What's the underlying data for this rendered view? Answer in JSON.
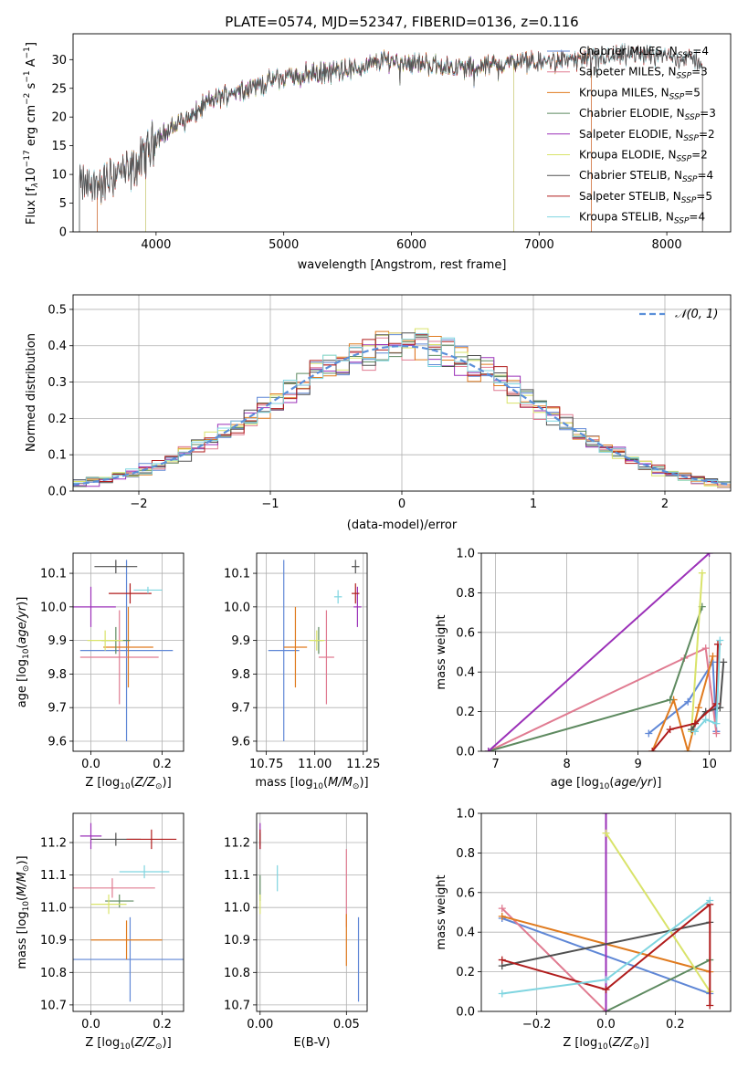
{
  "figure": {
    "title": "PLATE=0574, MJD=52347, FIBERID=0136, z=0.116"
  },
  "colors": {
    "Chabrier MILES": "#5f87d6",
    "Salpeter MILES": "#e07b91",
    "Kroupa MILES": "#e07b1f",
    "Chabrier ELODIE": "#5e8a60",
    "Salpeter ELODIE": "#9b30b8",
    "Kroupa ELODIE": "#d9e36a",
    "Chabrier STELIB": "#505050",
    "Salpeter STELIB": "#b01c1c",
    "Kroupa STELIB": "#7fd5e0"
  },
  "chart_data": [
    {
      "id": "spectrum",
      "type": "line",
      "xlabel": "wavelength [Angstrom, rest frame]",
      "ylabel": "Flux [f_λ10^-17 erg cm^-2 s^-1 A^-1]",
      "xlim": [
        3350,
        8500
      ],
      "ylim": [
        0,
        34.5
      ],
      "xticks": [
        4000,
        5000,
        6000,
        7000,
        8000
      ],
      "yticks": [
        0,
        5,
        10,
        15,
        20,
        25,
        30
      ],
      "grid": false,
      "legend_position": "right",
      "legend": [
        {
          "name": "Chabrier MILES",
          "label": "Chabrier MILES, N",
          "sub": "SSP",
          "eq": "=4"
        },
        {
          "name": "Salpeter MILES",
          "label": "Salpeter MILES, N",
          "sub": "SSP",
          "eq": "=3"
        },
        {
          "name": "Kroupa MILES",
          "label": "Kroupa MILES, N",
          "sub": "SSP",
          "eq": "=5"
        },
        {
          "name": "Chabrier ELODIE",
          "label": "Chabrier ELODIE, N",
          "sub": "SSP",
          "eq": "=3"
        },
        {
          "name": "Salpeter ELODIE",
          "label": "Salpeter ELODIE, N",
          "sub": "SSP",
          "eq": "=2"
        },
        {
          "name": "Kroupa ELODIE",
          "label": "Kroupa ELODIE, N",
          "sub": "SSP",
          "eq": "=2"
        },
        {
          "name": "Chabrier STELIB",
          "label": "Chabrier STELIB, N",
          "sub": "SSP",
          "eq": "=4"
        },
        {
          "name": "Salpeter STELIB",
          "label": "Salpeter STELIB, N",
          "sub": "SSP",
          "eq": "=5"
        },
        {
          "name": "Kroupa STELIB",
          "label": "Kroupa STELIB, N",
          "sub": "SSP",
          "eq": "=4"
        }
      ],
      "continuum_x": [
        3400,
        3500,
        3600,
        3700,
        3800,
        3900,
        4000,
        4100,
        4200,
        4300,
        4400,
        4600,
        4800,
        5000,
        5200,
        5400,
        5600,
        5800,
        6000,
        6200,
        6400,
        6600,
        6800,
        7000,
        7200,
        7400,
        7600,
        7800,
        8000,
        8200,
        8300
      ],
      "continuum_y": [
        8.2,
        8.0,
        8.5,
        10.5,
        10.2,
        13.0,
        16.5,
        17.5,
        19.5,
        20.5,
        22.5,
        24.5,
        25.5,
        27.0,
        27.5,
        28.0,
        28.5,
        30.0,
        29.5,
        29.0,
        28.5,
        29.0,
        29.5,
        29.5,
        30.0,
        30.0,
        30.5,
        31.0,
        30.5,
        30.0,
        29.5
      ],
      "coverage": [
        {
          "name": "Chabrier MILES",
          "min": 3540,
          "max": 7410
        },
        {
          "name": "Salpeter MILES",
          "min": 3540,
          "max": 7410
        },
        {
          "name": "Kroupa MILES",
          "min": 3540,
          "max": 7410
        },
        {
          "name": "Chabrier ELODIE",
          "min": 3920,
          "max": 6800
        },
        {
          "name": "Salpeter ELODIE",
          "min": 3920,
          "max": 6800
        },
        {
          "name": "Kroupa ELODIE",
          "min": 3920,
          "max": 6800
        },
        {
          "name": "Chabrier STELIB",
          "min": 3400,
          "max": 8280
        },
        {
          "name": "Salpeter STELIB",
          "min": 3400,
          "max": 8280
        },
        {
          "name": "Kroupa STELIB",
          "min": 3400,
          "max": 8280
        }
      ]
    },
    {
      "id": "residuals",
      "type": "histogram",
      "xlabel": "(data-model)/error",
      "ylabel": "Normed distribution",
      "xlim": [
        -2.5,
        2.5
      ],
      "ylim": [
        0,
        0.54
      ],
      "xticks": [
        -2,
        -1,
        0,
        1,
        2
      ],
      "yticks": [
        0,
        0.1,
        0.2,
        0.3,
        0.4,
        0.5
      ],
      "grid": true,
      "bin_width": 0.1,
      "legend": "𝒩(0, 1)",
      "legend_position": "top-right"
    },
    {
      "id": "age-vs-Z",
      "type": "errorbar",
      "xlabel": "Z [log10(Z/Z⊙)]",
      "ylabel": "age [log10(age/yr)]",
      "xlim": [
        -0.05,
        0.26
      ],
      "ylim": [
        9.57,
        10.16
      ],
      "xticks": [
        0.0,
        0.2
      ],
      "yticks": [
        9.6,
        9.7,
        9.8,
        9.9,
        10.0,
        10.1
      ],
      "grid": true,
      "points": [
        {
          "name": "Chabrier MILES",
          "x": 0.1,
          "xerr": 0.13,
          "y": 9.87,
          "yerr": 0.27
        },
        {
          "name": "Salpeter MILES",
          "x": 0.08,
          "xerr": 0.11,
          "y": 9.85,
          "yerr": 0.14
        },
        {
          "name": "Kroupa MILES",
          "x": 0.105,
          "xerr": 0.07,
          "y": 9.88,
          "yerr": 0.12
        },
        {
          "name": "Chabrier ELODIE",
          "x": 0.07,
          "xerr": 0.04,
          "y": 9.9,
          "yerr": 0.04
        },
        {
          "name": "Salpeter ELODIE",
          "x": 0.0,
          "xerr": 0.07,
          "y": 10.0,
          "yerr": 0.06
        },
        {
          "name": "Kroupa ELODIE",
          "x": 0.04,
          "xerr": 0.05,
          "y": 9.9,
          "yerr": 0.03
        },
        {
          "name": "Chabrier STELIB",
          "x": 0.07,
          "xerr": 0.06,
          "y": 10.12,
          "yerr": 0.02
        },
        {
          "name": "Salpeter STELIB",
          "x": 0.11,
          "xerr": 0.06,
          "y": 10.04,
          "yerr": 0.03
        },
        {
          "name": "Kroupa STELIB",
          "x": 0.16,
          "xerr": 0.04,
          "y": 10.05,
          "yerr": 0.01
        }
      ]
    },
    {
      "id": "age-vs-mass",
      "type": "errorbar",
      "xlabel": "mass [log10(M/M⊙)]",
      "ylabel": "",
      "xlim": [
        10.7,
        11.27
      ],
      "ylim": [
        9.57,
        10.16
      ],
      "xticks": [
        10.75,
        11.0,
        11.25
      ],
      "yticks": [
        9.6,
        9.7,
        9.8,
        9.9,
        10.0,
        10.1
      ],
      "grid": true,
      "points": [
        {
          "name": "Chabrier MILES",
          "x": 10.84,
          "xerr": 0.08,
          "y": 9.87,
          "yerr": 0.27
        },
        {
          "name": "Salpeter MILES",
          "x": 11.06,
          "xerr": 0.04,
          "y": 9.85,
          "yerr": 0.14
        },
        {
          "name": "Kroupa MILES",
          "x": 10.9,
          "xerr": 0.06,
          "y": 9.88,
          "yerr": 0.12
        },
        {
          "name": "Chabrier ELODIE",
          "x": 11.02,
          "xerr": 0.02,
          "y": 9.9,
          "yerr": 0.04
        },
        {
          "name": "Salpeter ELODIE",
          "x": 11.22,
          "xerr": 0.02,
          "y": 10.0,
          "yerr": 0.06
        },
        {
          "name": "Kroupa ELODIE",
          "x": 11.01,
          "xerr": 0.04,
          "y": 9.9,
          "yerr": 0.03
        },
        {
          "name": "Chabrier STELIB",
          "x": 11.21,
          "xerr": 0.02,
          "y": 10.12,
          "yerr": 0.02
        },
        {
          "name": "Salpeter STELIB",
          "x": 11.21,
          "xerr": 0.02,
          "y": 10.04,
          "yerr": 0.03
        },
        {
          "name": "Kroupa STELIB",
          "x": 11.12,
          "xerr": 0.02,
          "y": 10.03,
          "yerr": 0.02
        }
      ]
    },
    {
      "id": "weight-vs-age",
      "type": "line",
      "xlabel": "age [log10(age/yr)]",
      "ylabel": "mass weight",
      "xlim": [
        6.8,
        10.3
      ],
      "ylim": [
        0,
        1.0
      ],
      "xticks": [
        7,
        8,
        9,
        10
      ],
      "yticks": [
        0.0,
        0.2,
        0.4,
        0.6,
        0.8,
        1.0
      ],
      "grid": true,
      "series": [
        {
          "name": "Chabrier MILES",
          "x": [
            9.15,
            9.7,
            10.05,
            10.1
          ],
          "y": [
            0.09,
            0.25,
            0.45,
            0.1
          ]
        },
        {
          "name": "Salpeter MILES",
          "x": [
            6.9,
            9.65,
            9.95,
            10.1
          ],
          "y": [
            0.0,
            0.47,
            0.52,
            0.09
          ]
        },
        {
          "name": "Kroupa MILES",
          "x": [
            9.2,
            9.5,
            9.7,
            9.85,
            10.05
          ],
          "y": [
            0.0,
            0.26,
            0.0,
            0.22,
            0.48
          ]
        },
        {
          "name": "Chabrier ELODIE",
          "x": [
            6.9,
            9.45,
            9.9
          ],
          "y": [
            0.0,
            0.26,
            0.73
          ]
        },
        {
          "name": "Salpeter ELODIE",
          "x": [
            6.9,
            10.0
          ],
          "y": [
            0.0,
            1.0
          ]
        },
        {
          "name": "Kroupa ELODIE",
          "x": [
            9.75,
            9.9
          ],
          "y": [
            0.1,
            0.9
          ]
        },
        {
          "name": "Chabrier STELIB",
          "x": [
            9.75,
            9.95,
            10.15,
            10.2
          ],
          "y": [
            0.11,
            0.2,
            0.22,
            0.45
          ]
        },
        {
          "name": "Salpeter STELIB",
          "x": [
            9.2,
            9.45,
            9.8,
            10.1,
            10.12
          ],
          "y": [
            0.0,
            0.11,
            0.14,
            0.24,
            0.54
          ]
        },
        {
          "name": "Kroupa STELIB",
          "x": [
            9.8,
            9.95,
            10.1,
            10.15
          ],
          "y": [
            0.1,
            0.16,
            0.14,
            0.56
          ]
        }
      ]
    },
    {
      "id": "mass-vs-Z",
      "type": "errorbar",
      "xlabel": "Z [log10(Z/Z⊙)]",
      "ylabel": "mass [log10(M/M⊙)]",
      "xlim": [
        -0.05,
        0.26
      ],
      "ylim": [
        10.68,
        11.29
      ],
      "xticks": [
        0.0,
        0.2
      ],
      "yticks": [
        10.7,
        10.8,
        10.9,
        11.0,
        11.1,
        11.2
      ],
      "grid": true,
      "points": [
        {
          "name": "Chabrier MILES",
          "x": 0.11,
          "xerr": 0.27,
          "y": 10.84,
          "yerr": 0.13
        },
        {
          "name": "Salpeter MILES",
          "x": 0.06,
          "xerr": 0.12,
          "y": 11.06,
          "yerr": 0.03
        },
        {
          "name": "Kroupa MILES",
          "x": 0.1,
          "xerr": 0.1,
          "y": 10.9,
          "yerr": 0.06
        },
        {
          "name": "Chabrier ELODIE",
          "x": 0.08,
          "xerr": 0.04,
          "y": 11.02,
          "yerr": 0.02
        },
        {
          "name": "Salpeter ELODIE",
          "x": 0.0,
          "xerr": 0.03,
          "y": 11.22,
          "yerr": 0.04
        },
        {
          "name": "Kroupa ELODIE",
          "x": 0.05,
          "xerr": 0.05,
          "y": 11.01,
          "yerr": 0.03
        },
        {
          "name": "Chabrier STELIB",
          "x": 0.07,
          "xerr": 0.07,
          "y": 11.21,
          "yerr": 0.02
        },
        {
          "name": "Salpeter STELIB",
          "x": 0.17,
          "xerr": 0.07,
          "y": 11.21,
          "yerr": 0.03
        },
        {
          "name": "Kroupa STELIB",
          "x": 0.15,
          "xerr": 0.07,
          "y": 11.11,
          "yerr": 0.02
        }
      ]
    },
    {
      "id": "mass-vs-EBV",
      "type": "errorbar",
      "xlabel": "E(B-V)",
      "ylabel": "",
      "xlim": [
        -0.002,
        0.062
      ],
      "ylim": [
        10.68,
        11.29
      ],
      "xticks": [
        0.0,
        0.05
      ],
      "yticks": [
        10.7,
        10.8,
        10.9,
        11.0,
        11.1,
        11.2
      ],
      "grid": true,
      "points": [
        {
          "name": "Chabrier MILES",
          "x": 0.057,
          "xerr": 0,
          "y": 10.84,
          "yerr": 0.13
        },
        {
          "name": "Salpeter MILES",
          "x": 0.05,
          "xerr": 0,
          "y": 11.06,
          "yerr": 0.12
        },
        {
          "name": "Kroupa MILES",
          "x": 0.05,
          "xerr": 0,
          "y": 10.9,
          "yerr": 0.08
        },
        {
          "name": "Chabrier ELODIE",
          "x": 0.0,
          "xerr": 0,
          "y": 11.06,
          "yerr": 0.04
        },
        {
          "name": "Salpeter ELODIE",
          "x": 0.0,
          "xerr": 0,
          "y": 11.22,
          "yerr": 0.04
        },
        {
          "name": "Kroupa ELODIE",
          "x": 0.0,
          "xerr": 0,
          "y": 11.01,
          "yerr": 0.03
        },
        {
          "name": "Chabrier STELIB",
          "x": 0.0,
          "xerr": 0,
          "y": 11.21,
          "yerr": 0.02
        },
        {
          "name": "Salpeter STELIB",
          "x": 0.0,
          "xerr": 0,
          "y": 11.21,
          "yerr": 0.03
        },
        {
          "name": "Kroupa STELIB",
          "x": 0.01,
          "xerr": 0,
          "y": 11.09,
          "yerr": 0.04
        }
      ]
    },
    {
      "id": "weight-vs-Z",
      "type": "line",
      "xlabel": "Z [log10(Z/Z⊙)]",
      "ylabel": "mass weight",
      "xlim": [
        -0.36,
        0.36
      ],
      "ylim": [
        0,
        1.0
      ],
      "xticks": [
        -0.2,
        0.0,
        0.2
      ],
      "yticks": [
        0.0,
        0.2,
        0.4,
        0.6,
        0.8,
        1.0
      ],
      "grid": true,
      "series": [
        {
          "name": "Chabrier MILES",
          "x": [
            -0.3,
            0.3
          ],
          "y": [
            0.47,
            0.09
          ]
        },
        {
          "name": "Salpeter MILES",
          "x": [
            -0.3,
            0.0
          ],
          "y": [
            0.52,
            0.0
          ]
        },
        {
          "name": "Kroupa MILES",
          "x": [
            -0.3,
            0.3
          ],
          "y": [
            0.48,
            0.2
          ]
        },
        {
          "name": "Chabrier ELODIE",
          "x": [
            0.0,
            0.3
          ],
          "y": [
            0.0,
            0.26
          ]
        },
        {
          "name": "Salpeter ELODIE",
          "x": [
            0.0,
            0.0
          ],
          "y": [
            0.0,
            1.0
          ]
        },
        {
          "name": "Kroupa ELODIE",
          "x": [
            0.0,
            0.3
          ],
          "y": [
            0.9,
            0.1
          ]
        },
        {
          "name": "Chabrier STELIB",
          "x": [
            -0.3,
            0.3
          ],
          "y": [
            0.23,
            0.45
          ]
        },
        {
          "name": "Salpeter STELIB",
          "x": [
            -0.3,
            0.0,
            0.3,
            0.3
          ],
          "y": [
            0.26,
            0.11,
            0.54,
            0.03
          ]
        },
        {
          "name": "Kroupa STELIB",
          "x": [
            -0.3,
            0.0,
            0.3
          ],
          "y": [
            0.09,
            0.16,
            0.56
          ]
        }
      ]
    }
  ]
}
